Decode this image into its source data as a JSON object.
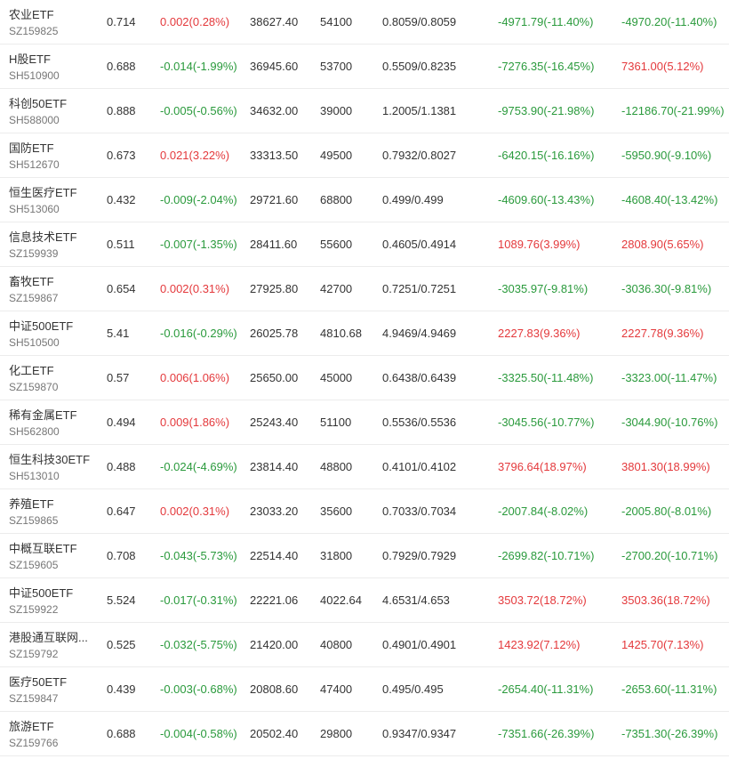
{
  "colors": {
    "up": "#e4393c",
    "down": "#2a9a3c"
  },
  "rows": [
    {
      "name": "农业ETF",
      "code": "SZ159825",
      "price": "0.714",
      "change": "0.002(0.28%)",
      "change_dir": "up",
      "amount": "38627.40",
      "volume": "54100",
      "range": "0.8059/0.8059",
      "flow1": "-4971.79(-11.40%)",
      "flow1_dir": "down",
      "flow2": "-4970.20(-11.40%)",
      "flow2_dir": "down"
    },
    {
      "name": "H股ETF",
      "code": "SH510900",
      "price": "0.688",
      "change": "-0.014(-1.99%)",
      "change_dir": "down",
      "amount": "36945.60",
      "volume": "53700",
      "range": "0.5509/0.8235",
      "flow1": "-7276.35(-16.45%)",
      "flow1_dir": "down",
      "flow2": "7361.00(5.12%)",
      "flow2_dir": "up"
    },
    {
      "name": "科创50ETF",
      "code": "SH588000",
      "price": "0.888",
      "change": "-0.005(-0.56%)",
      "change_dir": "down",
      "amount": "34632.00",
      "volume": "39000",
      "range": "1.2005/1.1381",
      "flow1": "-9753.90(-21.98%)",
      "flow1_dir": "down",
      "flow2": "-12186.70(-21.99%)",
      "flow2_dir": "down"
    },
    {
      "name": "国防ETF",
      "code": "SH512670",
      "price": "0.673",
      "change": "0.021(3.22%)",
      "change_dir": "up",
      "amount": "33313.50",
      "volume": "49500",
      "range": "0.7932/0.8027",
      "flow1": "-6420.15(-16.16%)",
      "flow1_dir": "down",
      "flow2": "-5950.90(-9.10%)",
      "flow2_dir": "down"
    },
    {
      "name": "恒生医疗ETF",
      "code": "SH513060",
      "price": "0.432",
      "change": "-0.009(-2.04%)",
      "change_dir": "down",
      "amount": "29721.60",
      "volume": "68800",
      "range": "0.499/0.499",
      "flow1": "-4609.60(-13.43%)",
      "flow1_dir": "down",
      "flow2": "-4608.40(-13.42%)",
      "flow2_dir": "down"
    },
    {
      "name": "信息技术ETF",
      "code": "SZ159939",
      "price": "0.511",
      "change": "-0.007(-1.35%)",
      "change_dir": "down",
      "amount": "28411.60",
      "volume": "55600",
      "range": "0.4605/0.4914",
      "flow1": "1089.76(3.99%)",
      "flow1_dir": "up",
      "flow2": "2808.90(5.65%)",
      "flow2_dir": "up"
    },
    {
      "name": "畜牧ETF",
      "code": "SZ159867",
      "price": "0.654",
      "change": "0.002(0.31%)",
      "change_dir": "up",
      "amount": "27925.80",
      "volume": "42700",
      "range": "0.7251/0.7251",
      "flow1": "-3035.97(-9.81%)",
      "flow1_dir": "down",
      "flow2": "-3036.30(-9.81%)",
      "flow2_dir": "down"
    },
    {
      "name": "中证500ETF",
      "code": "SH510500",
      "price": "5.41",
      "change": "-0.016(-0.29%)",
      "change_dir": "down",
      "amount": "26025.78",
      "volume": "4810.68",
      "range": "4.9469/4.9469",
      "flow1": "2227.83(9.36%)",
      "flow1_dir": "up",
      "flow2": "2227.78(9.36%)",
      "flow2_dir": "up"
    },
    {
      "name": "化工ETF",
      "code": "SZ159870",
      "price": "0.57",
      "change": "0.006(1.06%)",
      "change_dir": "up",
      "amount": "25650.00",
      "volume": "45000",
      "range": "0.6438/0.6439",
      "flow1": "-3325.50(-11.48%)",
      "flow1_dir": "down",
      "flow2": "-3323.00(-11.47%)",
      "flow2_dir": "down"
    },
    {
      "name": "稀有金属ETF",
      "code": "SH562800",
      "price": "0.494",
      "change": "0.009(1.86%)",
      "change_dir": "up",
      "amount": "25243.40",
      "volume": "51100",
      "range": "0.5536/0.5536",
      "flow1": "-3045.56(-10.77%)",
      "flow1_dir": "down",
      "flow2": "-3044.90(-10.76%)",
      "flow2_dir": "down"
    },
    {
      "name": "恒生科技30ETF",
      "code": "SH513010",
      "price": "0.488",
      "change": "-0.024(-4.69%)",
      "change_dir": "down",
      "amount": "23814.40",
      "volume": "48800",
      "range": "0.4101/0.4102",
      "flow1": "3796.64(18.97%)",
      "flow1_dir": "up",
      "flow2": "3801.30(18.99%)",
      "flow2_dir": "up"
    },
    {
      "name": "养殖ETF",
      "code": "SZ159865",
      "price": "0.647",
      "change": "0.002(0.31%)",
      "change_dir": "up",
      "amount": "23033.20",
      "volume": "35600",
      "range": "0.7033/0.7034",
      "flow1": "-2007.84(-8.02%)",
      "flow1_dir": "down",
      "flow2": "-2005.80(-8.01%)",
      "flow2_dir": "down"
    },
    {
      "name": "中概互联ETF",
      "code": "SZ159605",
      "price": "0.708",
      "change": "-0.043(-5.73%)",
      "change_dir": "down",
      "amount": "22514.40",
      "volume": "31800",
      "range": "0.7929/0.7929",
      "flow1": "-2699.82(-10.71%)",
      "flow1_dir": "down",
      "flow2": "-2700.20(-10.71%)",
      "flow2_dir": "down"
    },
    {
      "name": "中证500ETF",
      "code": "SZ159922",
      "price": "5.524",
      "change": "-0.017(-0.31%)",
      "change_dir": "down",
      "amount": "22221.06",
      "volume": "4022.64",
      "range": "4.6531/4.653",
      "flow1": "3503.72(18.72%)",
      "flow1_dir": "up",
      "flow2": "3503.36(18.72%)",
      "flow2_dir": "up"
    },
    {
      "name": "港股通互联网...",
      "code": "SZ159792",
      "price": "0.525",
      "change": "-0.032(-5.75%)",
      "change_dir": "down",
      "amount": "21420.00",
      "volume": "40800",
      "range": "0.4901/0.4901",
      "flow1": "1423.92(7.12%)",
      "flow1_dir": "up",
      "flow2": "1425.70(7.13%)",
      "flow2_dir": "up"
    },
    {
      "name": "医疗50ETF",
      "code": "SZ159847",
      "price": "0.439",
      "change": "-0.003(-0.68%)",
      "change_dir": "down",
      "amount": "20808.60",
      "volume": "47400",
      "range": "0.495/0.495",
      "flow1": "-2654.40(-11.31%)",
      "flow1_dir": "down",
      "flow2": "-2653.60(-11.31%)",
      "flow2_dir": "down"
    },
    {
      "name": "旅游ETF",
      "code": "SZ159766",
      "price": "0.688",
      "change": "-0.004(-0.58%)",
      "change_dir": "down",
      "amount": "20502.40",
      "volume": "29800",
      "range": "0.9347/0.9347",
      "flow1": "-7351.66(-26.39%)",
      "flow1_dir": "down",
      "flow2": "-7351.30(-26.39%)",
      "flow2_dir": "down"
    }
  ]
}
